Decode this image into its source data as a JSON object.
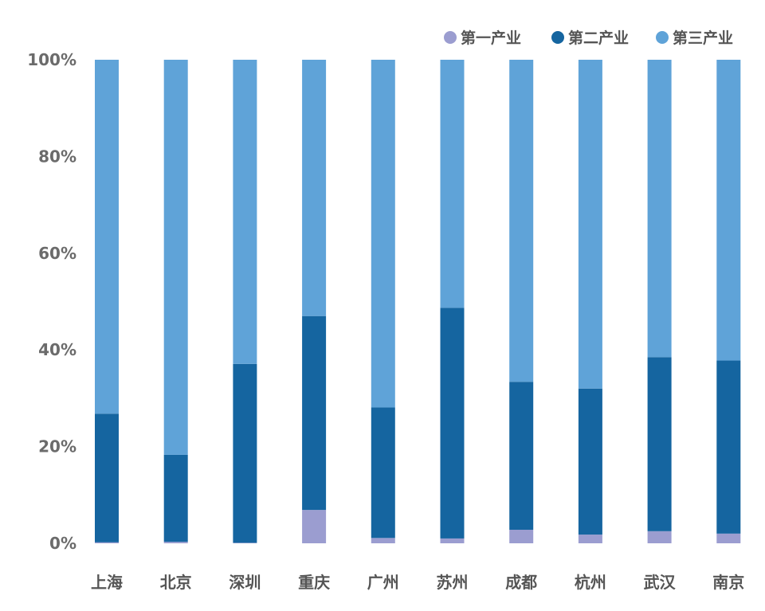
{
  "chart_data": {
    "type": "bar",
    "stacked": true,
    "normalized": true,
    "categories": [
      "上海",
      "北京",
      "深圳",
      "重庆",
      "广州",
      "苏州",
      "成都",
      "杭州",
      "武汉",
      "南京"
    ],
    "series": [
      {
        "name": "第一产业",
        "color": "#9b9dd0",
        "values": [
          0.2,
          0.3,
          0.1,
          6.9,
          1.1,
          1.0,
          2.8,
          1.8,
          2.5,
          2.0
        ]
      },
      {
        "name": "第二产业",
        "color": "#1565a0",
        "values": [
          26.6,
          18.0,
          37.0,
          40.1,
          27.0,
          47.7,
          30.6,
          30.2,
          36.0,
          35.8
        ]
      },
      {
        "name": "第三产业",
        "color": "#5fa3d8",
        "values": [
          73.2,
          81.7,
          62.9,
          53.0,
          71.9,
          51.3,
          66.6,
          68.0,
          61.5,
          62.2
        ]
      }
    ],
    "ylim": [
      0,
      100
    ],
    "yticks": [
      "0%",
      "20%",
      "40%",
      "60%",
      "80%",
      "100%"
    ],
    "legend_position": "top-right",
    "grid": false
  }
}
